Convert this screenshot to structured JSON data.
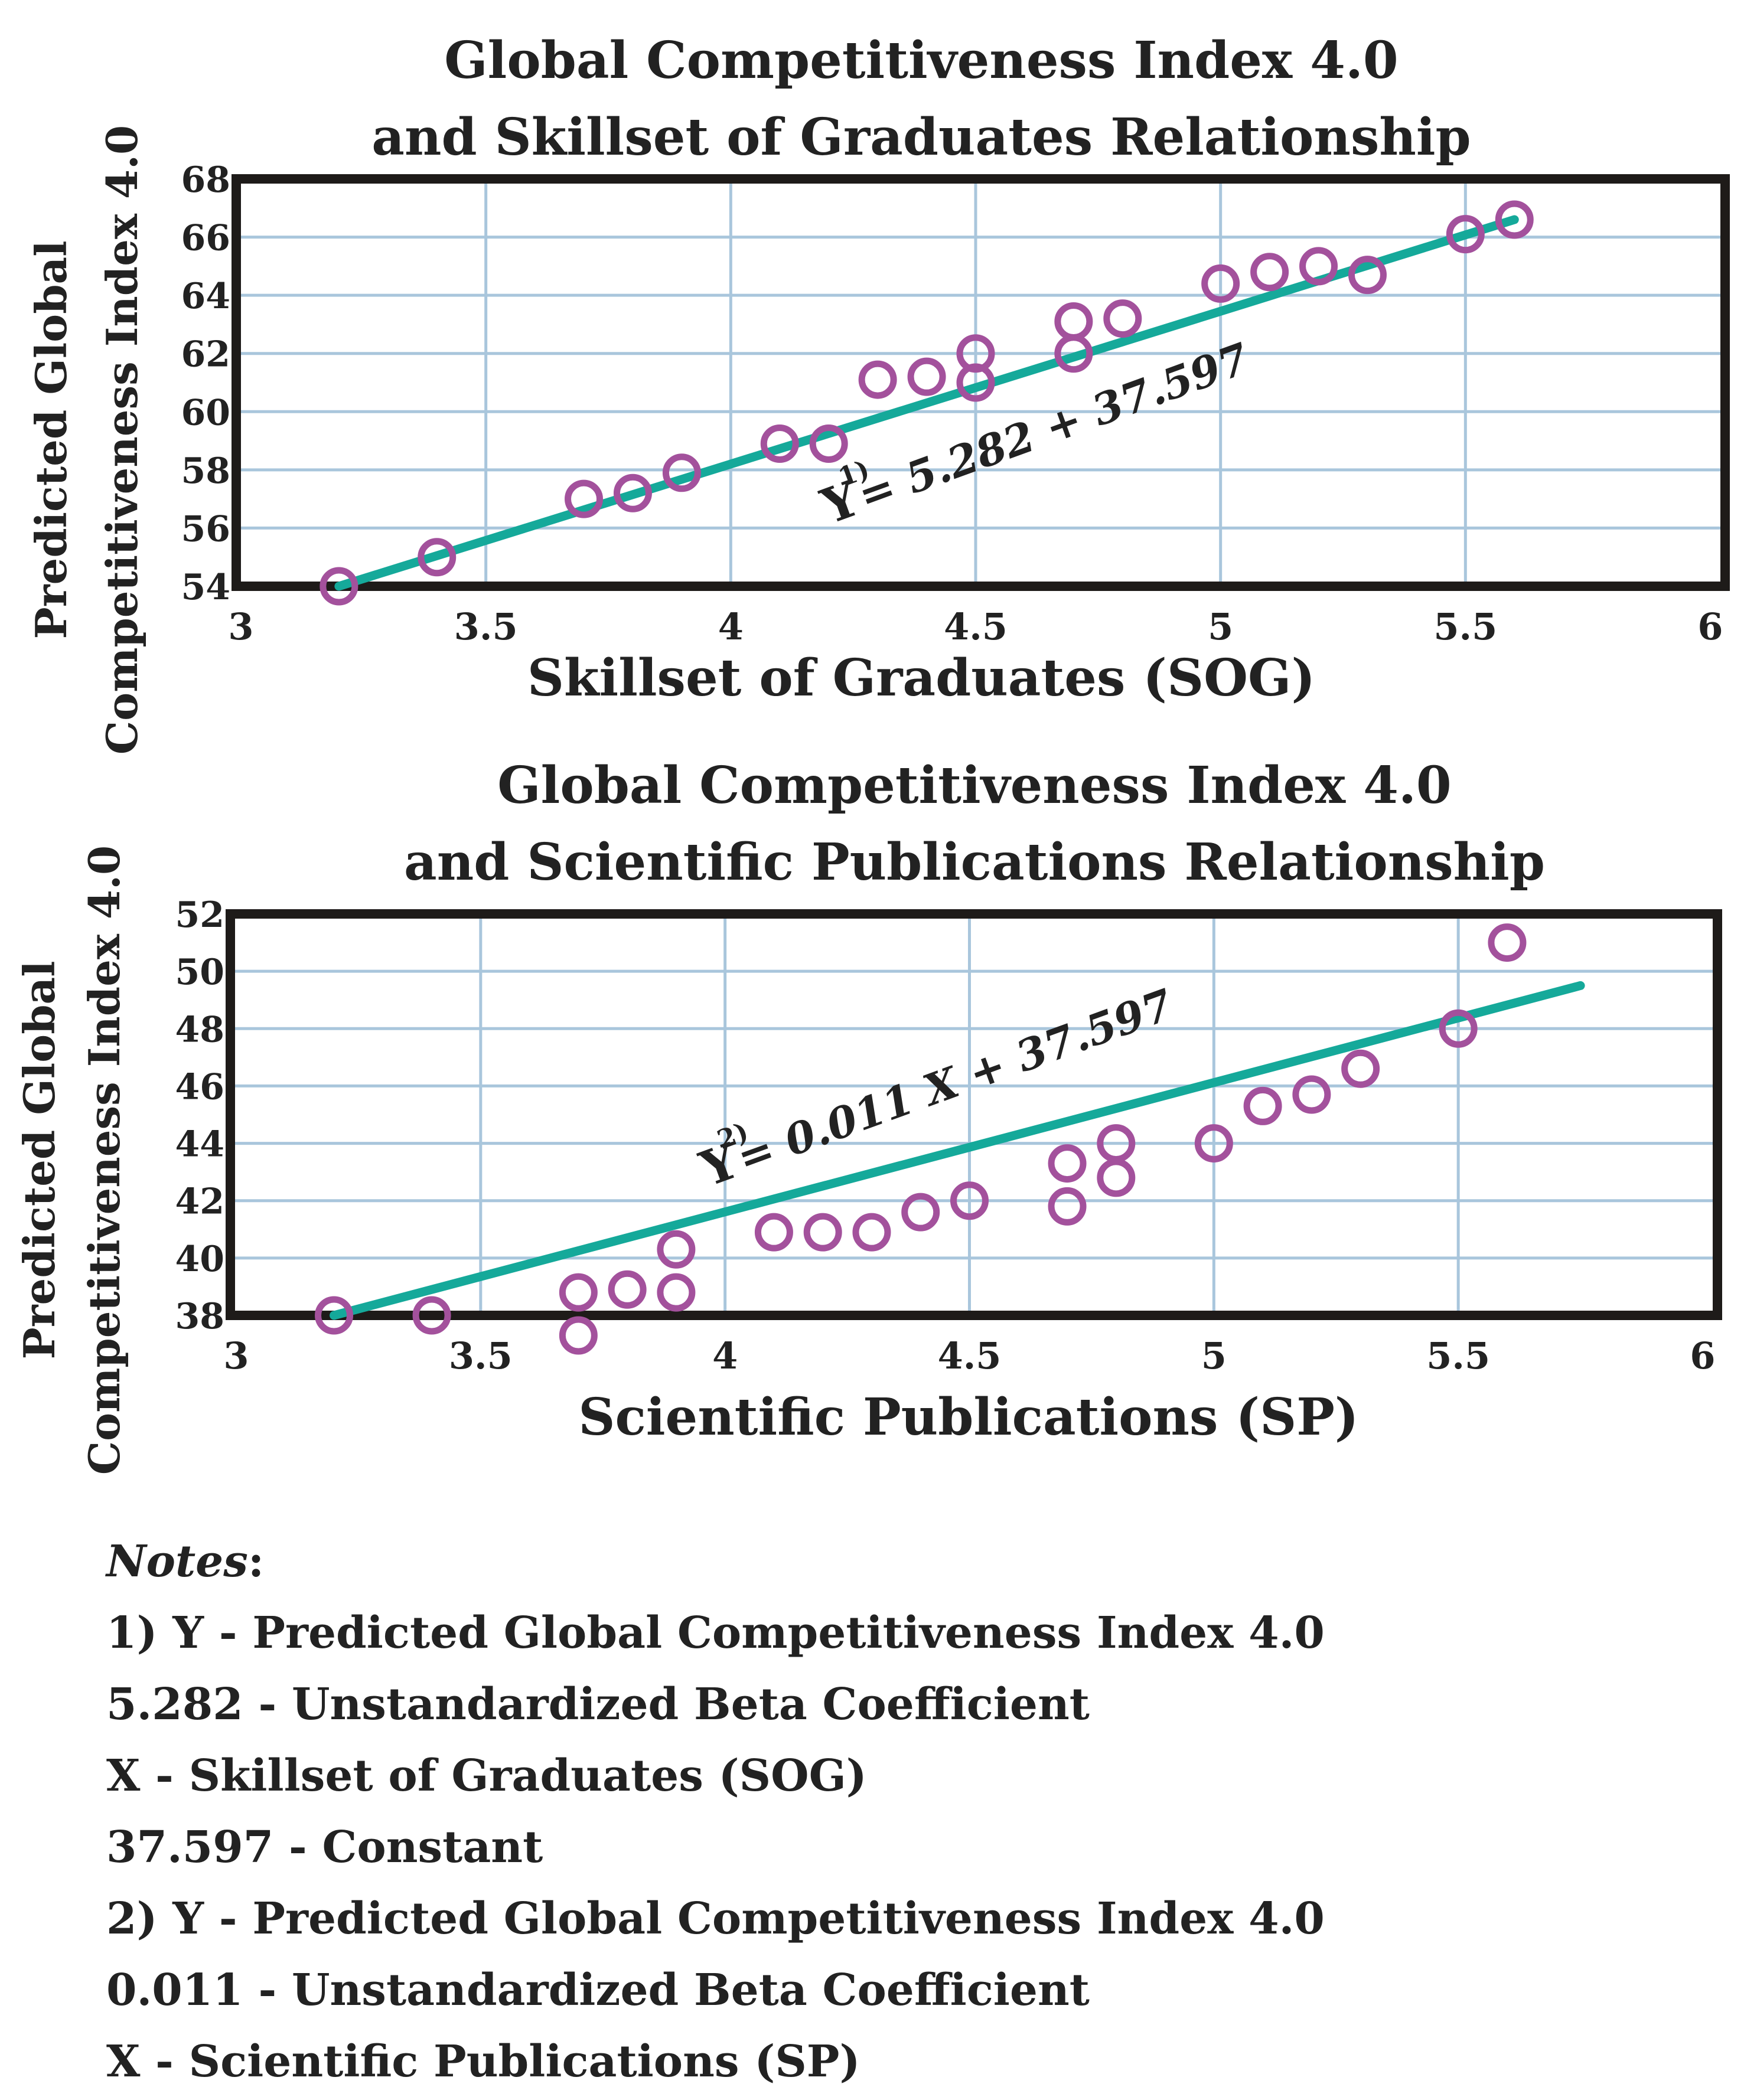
{
  "chart_data": [
    {
      "type": "scatter",
      "title_lines": [
        "Global Competitiveness Index 4.0",
        "and Skillset of Graduates Relationship"
      ],
      "xlabel": "Skillset of Graduates (SOG)",
      "ylabel_lines": [
        "Predicted Global",
        "Competitiveness Index 4.0"
      ],
      "xlim": [
        3,
        6
      ],
      "ylim": [
        54,
        68
      ],
      "xticks": [
        3,
        3.5,
        4,
        4.5,
        5,
        5.5,
        6
      ],
      "xtick_labels": [
        "3",
        "3.5",
        "4",
        "4.5",
        "5",
        "5.5",
        "6"
      ],
      "yticks": [
        54,
        56,
        58,
        60,
        62,
        64,
        66,
        68
      ],
      "ytick_labels": [
        "54",
        "56",
        "58",
        "60",
        "62",
        "64",
        "66",
        "68"
      ],
      "grid": true,
      "series": [
        {
          "name": "observations",
          "x": [
            3.2,
            3.4,
            3.7,
            3.8,
            3.9,
            4.1,
            4.2,
            4.3,
            4.4,
            4.5,
            4.5,
            4.7,
            4.7,
            4.8,
            5.0,
            5.1,
            5.2,
            5.3,
            5.5,
            5.6
          ],
          "y": [
            54.0,
            55.0,
            57.0,
            57.2,
            57.9,
            58.9,
            58.9,
            61.1,
            61.2,
            61.0,
            62.0,
            63.1,
            62.0,
            63.2,
            64.4,
            64.8,
            65.0,
            64.7,
            66.1,
            66.6
          ]
        }
      ],
      "fit_line": {
        "x": [
          3.2,
          5.6
        ],
        "y": [
          54.0,
          66.6
        ]
      },
      "equation": {
        "prefix": "Y",
        "sup": "1)",
        "rest": "= 5.282 + 37.597"
      }
    },
    {
      "type": "scatter",
      "title_lines": [
        "Global Competitiveness Index 4.0",
        "and Scientific Publications Relationship"
      ],
      "xlabel": "Scientific Publications (SP)",
      "ylabel_lines": [
        "Predicted Global",
        "Competitiveness Index 4.0"
      ],
      "xlim": [
        3,
        6
      ],
      "ylim": [
        38,
        52
      ],
      "xticks": [
        3,
        3.5,
        4,
        4.5,
        5,
        5.5,
        6
      ],
      "xtick_labels": [
        "3",
        "3.5",
        "4",
        "4.5",
        "5",
        "5.5",
        "6"
      ],
      "yticks": [
        38,
        40,
        42,
        44,
        46,
        48,
        50,
        52
      ],
      "ytick_labels": [
        "38",
        "40",
        "42",
        "44",
        "46",
        "48",
        "50",
        "52"
      ],
      "grid": true,
      "series": [
        {
          "name": "observations",
          "x": [
            3.2,
            3.4,
            3.7,
            3.7,
            3.8,
            3.9,
            3.9,
            4.1,
            4.2,
            4.3,
            4.4,
            4.5,
            4.7,
            4.7,
            4.8,
            4.8,
            5.0,
            5.1,
            5.2,
            5.3,
            5.5,
            5.6
          ],
          "y": [
            38.0,
            38.0,
            37.3,
            38.8,
            38.9,
            38.8,
            40.3,
            40.9,
            40.9,
            40.9,
            41.6,
            42.0,
            43.3,
            41.8,
            42.8,
            44.0,
            44.0,
            45.3,
            45.7,
            46.6,
            48.0,
            51.0
          ]
        }
      ],
      "fit_line": {
        "x": [
          3.2,
          5.75
        ],
        "y": [
          38.0,
          49.5
        ]
      },
      "equation": {
        "prefix": "Y",
        "sup": "2)",
        "rest": "= 0.011 X + 37.597"
      }
    }
  ],
  "colors": {
    "marker": "#a3519c",
    "fit_line": "#15a99a",
    "grid": "#a9c6dc",
    "frame": "#1e1b19"
  },
  "notes": {
    "heading": "Notes",
    "heading_colon": ":",
    "lines": [
      "1) Y - Predicted Global Competitiveness Index 4.0",
      "5.282 - Unstandardized Beta Coefficient",
      "X - Skillset of Graduates (SOG)",
      "37.597 - Constant",
      "2) Y - Predicted Global Competitiveness Index 4.0",
      "0.011 - Unstandardized Beta Coefficient",
      "X - Scientific Publications (SP)"
    ]
  }
}
